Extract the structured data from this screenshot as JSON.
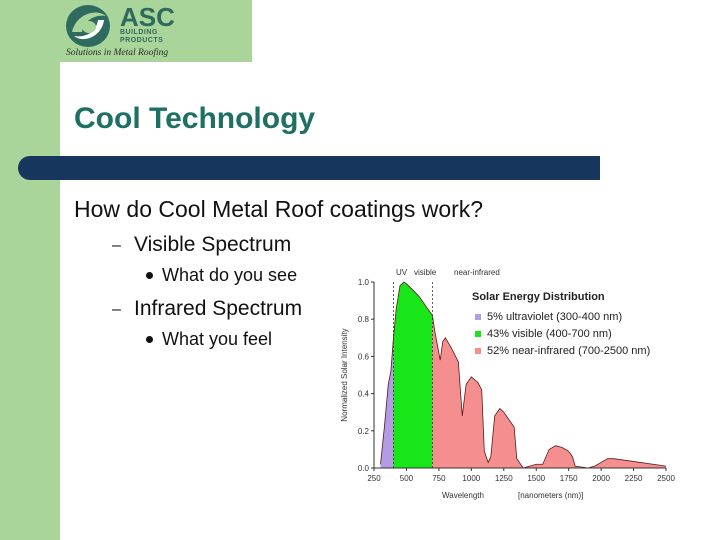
{
  "logo": {
    "name": "ASC",
    "sub_lines": [
      "BUILDING",
      "PRODUCTS"
    ],
    "tagline": "Solutions in Metal Roofing"
  },
  "slide": {
    "title": "Cool Technology",
    "question": "How do Cool Metal Roof coatings work?",
    "items": [
      {
        "label": "Visible Spectrum",
        "sub": "What do you see"
      },
      {
        "label": "Infrared Spectrum",
        "sub": "What you feel"
      }
    ]
  },
  "colors": {
    "title": "#1e7063",
    "bar": "#17365d",
    "band": "#a9d59a",
    "uv": "#b49be6",
    "visible": "#19e619",
    "nir": "#f58f8f"
  },
  "chart_data": {
    "type": "area",
    "title": "Solar Energy Distribution",
    "xlabel": "Wavelength",
    "xlabel_units": "[nanometers (nm)]",
    "ylabel": "Normalized Solar Intensity",
    "xlim": [
      250,
      2500
    ],
    "ylim": [
      0,
      1.0
    ],
    "x_ticks": [
      250,
      500,
      750,
      1000,
      1250,
      1500,
      1750,
      2000,
      2250,
      2500
    ],
    "y_ticks": [
      "0.0",
      "0.2",
      "0.4",
      "0.6",
      "0.8",
      "1.0"
    ],
    "region_labels": [
      "UV",
      "visible",
      "near-infrared"
    ],
    "legend": [
      {
        "label": "5% ultraviolet (300-400 nm)",
        "color": "#b49be6"
      },
      {
        "label": "43% visible (400-700 nm)",
        "color": "#19e619"
      },
      {
        "label": "52% near-infrared (700-2500 nm)",
        "color": "#f58f8f"
      }
    ],
    "regions": [
      {
        "name": "ultraviolet",
        "from": 300,
        "to": 400
      },
      {
        "name": "visible",
        "from": 400,
        "to": 700
      },
      {
        "name": "near-infrared",
        "from": 700,
        "to": 2500
      }
    ],
    "x": [
      300,
      330,
      360,
      380,
      400,
      420,
      450,
      480,
      500,
      530,
      560,
      600,
      650,
      700,
      720,
      760,
      780,
      800,
      850,
      900,
      930,
      960,
      1000,
      1050,
      1080,
      1100,
      1130,
      1150,
      1180,
      1220,
      1250,
      1280,
      1330,
      1350,
      1400,
      1450,
      1500,
      1550,
      1600,
      1650,
      1700,
      1750,
      1780,
      1800,
      1900,
      1950,
      2000,
      2050,
      2100,
      2200,
      2300,
      2400,
      2500
    ],
    "y": [
      0.02,
      0.22,
      0.45,
      0.52,
      0.7,
      0.85,
      0.98,
      1.0,
      0.99,
      0.97,
      0.95,
      0.92,
      0.87,
      0.82,
      0.73,
      0.58,
      0.68,
      0.7,
      0.64,
      0.57,
      0.28,
      0.45,
      0.49,
      0.46,
      0.42,
      0.09,
      0.03,
      0.06,
      0.28,
      0.32,
      0.3,
      0.27,
      0.22,
      0.05,
      0.0,
      0.01,
      0.02,
      0.02,
      0.1,
      0.12,
      0.11,
      0.09,
      0.06,
      0.01,
      0.0,
      0.01,
      0.03,
      0.05,
      0.05,
      0.04,
      0.03,
      0.02,
      0.01
    ]
  }
}
